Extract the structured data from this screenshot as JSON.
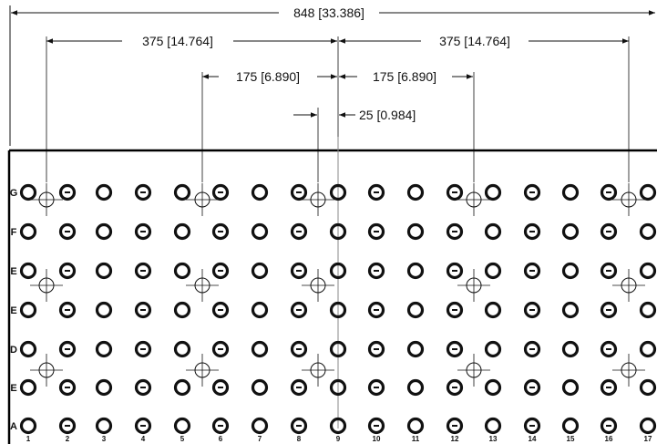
{
  "dimensions": {
    "overall": "848 [33.386]",
    "left_outer": "375 [14.764]",
    "right_outer": "375 [14.764]",
    "left_inner": "175 [6.890]",
    "right_inner": "175 [6.890]",
    "offset": "25 [0.984]"
  },
  "row_labels": [
    "G",
    "F",
    "E",
    "E",
    "D",
    "E",
    "A"
  ],
  "column_labels": [
    "1",
    "2",
    "3",
    "4",
    "5",
    "6",
    "7",
    "8",
    "9",
    "10",
    "11",
    "12",
    "13",
    "14",
    "15",
    "16",
    "17"
  ],
  "colors": {
    "line": "#111111",
    "panel_border": "#000000",
    "background": "#ffffff"
  }
}
